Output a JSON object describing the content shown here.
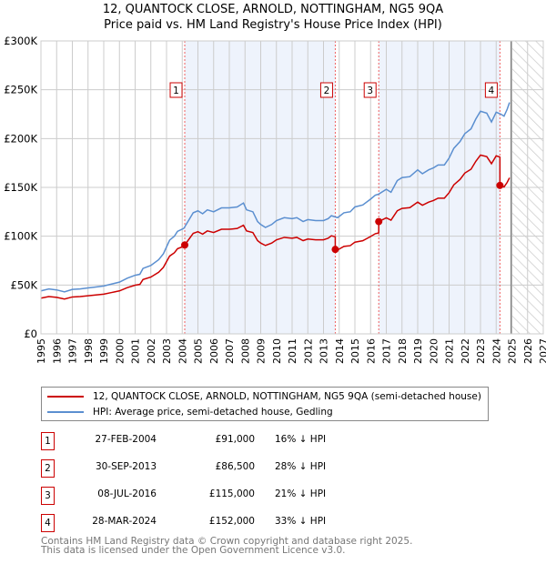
{
  "title": "12, QUANTOCK CLOSE, ARNOLD, NOTTINGHAM, NG5 9QA",
  "subtitle": "Price paid vs. HM Land Registry's House Price Index (HPI)",
  "chart_data": {
    "type": "line",
    "title": "Price paid vs. HM Land Registry's House Price Index (HPI)",
    "xlim": [
      1995,
      2027
    ],
    "ylim": [
      0,
      300000
    ],
    "x_ticks": [
      "1995",
      "1996",
      "1997",
      "1998",
      "1999",
      "2000",
      "2001",
      "2002",
      "2003",
      "2004",
      "2005",
      "2006",
      "2007",
      "2008",
      "2009",
      "2010",
      "2011",
      "2012",
      "2013",
      "2014",
      "2015",
      "2016",
      "2017",
      "2018",
      "2019",
      "2020",
      "2021",
      "2022",
      "2023",
      "2024",
      "2025",
      "2026",
      "2027"
    ],
    "y_ticks": [
      {
        "v": 0,
        "label": "£0"
      },
      {
        "v": 50000,
        "label": "£50K"
      },
      {
        "v": 100000,
        "label": "£100K"
      },
      {
        "v": 150000,
        "label": "£150K"
      },
      {
        "v": 200000,
        "label": "£200K"
      },
      {
        "v": 250000,
        "label": "£250K"
      },
      {
        "v": 300000,
        "label": "£300K"
      }
    ],
    "grid": true,
    "forecast_start": 2024.95,
    "colors": {
      "property": "#cc0000",
      "hpi": "#5b8fd0",
      "shade": "#eef3fc"
    },
    "legend": [
      {
        "label": "12, QUANTOCK CLOSE, ARNOLD, NOTTINGHAM, NG5 9QA (semi-detached house)",
        "color": "#cc0000"
      },
      {
        "label": "HPI: Average price, semi-detached house, Gedling",
        "color": "#5b8fd0"
      }
    ],
    "hpi_series": [
      [
        1995,
        44
      ],
      [
        1995.5,
        46
      ],
      [
        1996,
        45
      ],
      [
        1996.5,
        43
      ],
      [
        1997,
        45.5
      ],
      [
        1997.5,
        46
      ],
      [
        1998,
        47
      ],
      [
        1998.5,
        48
      ],
      [
        1999,
        49
      ],
      [
        1999.5,
        51
      ],
      [
        2000,
        53
      ],
      [
        2000.5,
        57
      ],
      [
        2001,
        60
      ],
      [
        2001.3,
        61
      ],
      [
        2001.5,
        67
      ],
      [
        2002,
        70
      ],
      [
        2002.5,
        76
      ],
      [
        2002.8,
        82
      ],
      [
        2003.2,
        96
      ],
      [
        2003.5,
        100
      ],
      [
        2003.7,
        105
      ],
      [
        2004.1,
        108
      ],
      [
        2004.4,
        116
      ],
      [
        2004.7,
        124
      ],
      [
        2005,
        126
      ],
      [
        2005.3,
        123
      ],
      [
        2005.6,
        127
      ],
      [
        2006,
        125
      ],
      [
        2006.5,
        129
      ],
      [
        2007,
        129
      ],
      [
        2007.5,
        130
      ],
      [
        2007.9,
        134
      ],
      [
        2008.1,
        127
      ],
      [
        2008.5,
        125
      ],
      [
        2008.8,
        115
      ],
      [
        2009,
        112
      ],
      [
        2009.3,
        109
      ],
      [
        2009.7,
        112
      ],
      [
        2010,
        116
      ],
      [
        2010.5,
        119
      ],
      [
        2011,
        118
      ],
      [
        2011.3,
        119
      ],
      [
        2011.7,
        115
      ],
      [
        2012,
        117
      ],
      [
        2012.5,
        116
      ],
      [
        2013,
        116
      ],
      [
        2013.3,
        118
      ],
      [
        2013.5,
        121
      ],
      [
        2013.9,
        119
      ],
      [
        2014.3,
        124
      ],
      [
        2014.7,
        125
      ],
      [
        2015,
        130
      ],
      [
        2015.5,
        132
      ],
      [
        2016,
        138
      ],
      [
        2016.3,
        142
      ],
      [
        2016.5,
        143
      ],
      [
        2017,
        148
      ],
      [
        2017.3,
        145
      ],
      [
        2017.7,
        157
      ],
      [
        2018,
        160
      ],
      [
        2018.5,
        161
      ],
      [
        2019,
        168
      ],
      [
        2019.3,
        164
      ],
      [
        2019.7,
        168
      ],
      [
        2020,
        170
      ],
      [
        2020.3,
        173
      ],
      [
        2020.7,
        173
      ],
      [
        2021,
        180
      ],
      [
        2021.3,
        190
      ],
      [
        2021.7,
        197
      ],
      [
        2022,
        205
      ],
      [
        2022.4,
        210
      ],
      [
        2022.7,
        220
      ],
      [
        2023,
        228
      ],
      [
        2023.4,
        226
      ],
      [
        2023.7,
        217
      ],
      [
        2024,
        227
      ],
      [
        2024.3,
        225
      ],
      [
        2024.5,
        223
      ],
      [
        2024.7,
        230
      ],
      [
        2024.85,
        237
      ]
    ],
    "sales": [
      {
        "num": "1",
        "date": "27-FEB-2004",
        "x": 2004.16,
        "price": 91000,
        "price_label": "£91,000",
        "hpi_note": "16% ↓ HPI"
      },
      {
        "num": "2",
        "date": "30-SEP-2013",
        "x": 2013.75,
        "price": 86500,
        "price_label": "£86,500",
        "hpi_note": "28% ↓ HPI"
      },
      {
        "num": "3",
        "date": "08-JUL-2016",
        "x": 2016.52,
        "price": 115000,
        "price_label": "£115,000",
        "hpi_note": "21% ↓ HPI"
      },
      {
        "num": "4",
        "date": "28-MAR-2024",
        "x": 2024.24,
        "price": 152000,
        "price_label": "£152,000",
        "hpi_note": "33% ↓ HPI"
      }
    ]
  },
  "footer": {
    "line1": "Contains HM Land Registry data © Crown copyright and database right 2025.",
    "line2": "This data is licensed under the Open Government Licence v3.0."
  }
}
